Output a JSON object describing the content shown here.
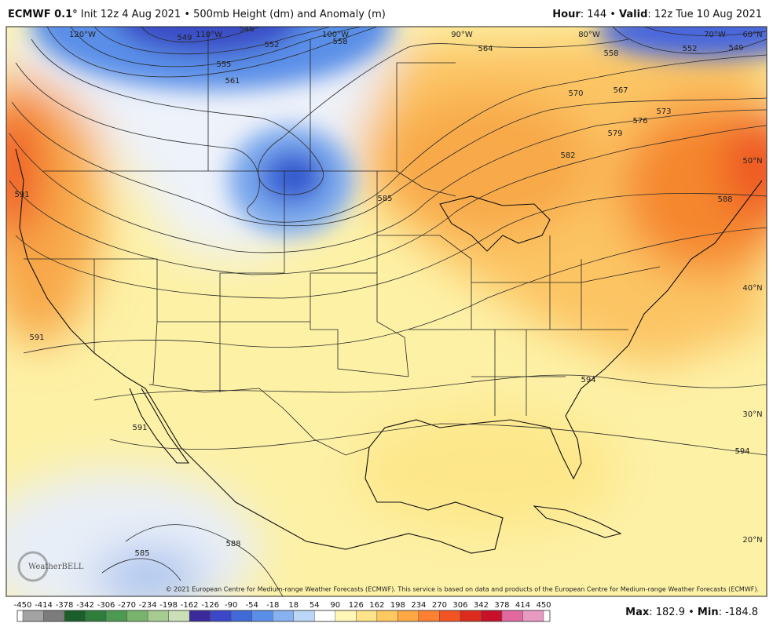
{
  "header": {
    "left": [
      "ECMWF 0.1°",
      "Init 12z 4 Aug 2021 • 500mb Height (dm) and Anomaly (m)"
    ],
    "right": [
      "Hour",
      ": 144 • ",
      "Valid",
      ": 12z Tue 10 Aug 2021"
    ]
  },
  "map": {
    "longitude_labels": [
      "120°W",
      "110°W",
      "100°W",
      "90°W",
      "80°W",
      "70°W",
      "60°N"
    ],
    "latitude_labels": [
      "50°N",
      "40°N",
      "30°N",
      "20°N"
    ],
    "contour_labels": [
      "546",
      "549",
      "552",
      "555",
      "561",
      "558",
      "564",
      "558",
      "552",
      "549",
      "570",
      "567",
      "573",
      "576",
      "579",
      "582",
      "585",
      "588",
      "591",
      "591",
      "594",
      "594",
      "591",
      "585",
      "588"
    ],
    "copyright": "© 2021 European Centre for Medium-range Weather Forecasts (ECMWF). This service is based on data and products of the European Centre for Medium-range Weather Forecasts (ECMWF).",
    "logo": "WeatherBELL"
  },
  "colorbar": {
    "ticks": [
      -450,
      -414,
      -378,
      -342,
      -306,
      -270,
      -234,
      -198,
      -162,
      -126,
      -90,
      -54,
      -18,
      18,
      54,
      90,
      126,
      162,
      198,
      234,
      270,
      306,
      342,
      378,
      414,
      450
    ],
    "colors": [
      "#a3a3a3",
      "#7c7c7c",
      "#1a5e2a",
      "#2e7d3a",
      "#4c9a50",
      "#78b46c",
      "#a6cc92",
      "#cce0b8",
      "#3a2a9a",
      "#3a48c8",
      "#3f6ad8",
      "#5b8ee8",
      "#86b2f2",
      "#bcd6f8",
      "#ffffff",
      "#fff6b8",
      "#ffe38a",
      "#ffc860",
      "#ffa844",
      "#ff8030",
      "#f25424",
      "#dc2a1c",
      "#c8102a",
      "#e06aa0",
      "#e89ac0"
    ]
  },
  "footer": [
    "Max",
    ": 182.9 • ",
    "Min",
    ": -184.8"
  ]
}
